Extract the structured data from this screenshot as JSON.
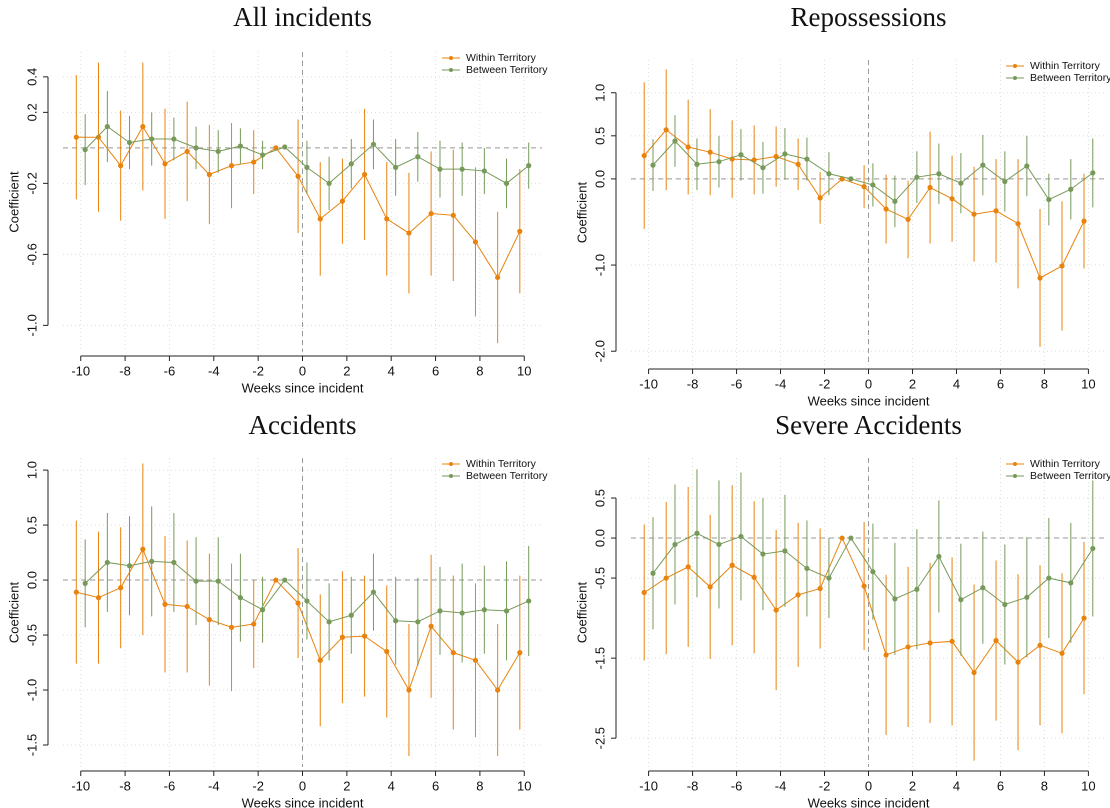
{
  "chart_data": [
    {
      "type": "line",
      "title": "All incidents",
      "x_label": "Weeks since incident",
      "y_label": "Coefficient",
      "x": [
        -10,
        -9,
        -8,
        -7,
        -6,
        -5,
        -4,
        -3,
        -2,
        -1,
        0,
        1,
        2,
        3,
        4,
        5,
        6,
        7,
        8,
        9,
        10
      ],
      "xlim": [
        -10.8,
        10.8
      ],
      "ylim": [
        -1.15,
        0.54
      ],
      "xticks": [
        -10,
        -8,
        -6,
        -4,
        -2,
        0,
        2,
        4,
        6,
        8,
        10
      ],
      "yticks": [
        0.4,
        0.2,
        -0.2,
        -0.6,
        {
          "value": -1,
          "label": "-1.0"
        }
      ],
      "hline": 0,
      "vline": 0,
      "grid": true,
      "legend": "top right",
      "series": [
        {
          "name": "Within Territory",
          "color": "#e8830e",
          "values": [
            0.06,
            0.06,
            -0.1,
            0.12,
            -0.09,
            -0.02,
            -0.15,
            -0.1,
            -0.08,
            0,
            -0.16,
            -0.4,
            -0.3,
            -0.15,
            -0.4,
            -0.48,
            -0.37,
            -0.38,
            -0.53,
            -0.73,
            -0.47
          ],
          "errors": [
            0.35,
            0.42,
            0.31,
            0.36,
            0.31,
            0.28,
            0.28,
            0.24,
            0.18,
            0,
            0.32,
            0.32,
            0.24,
            0.37,
            0.32,
            0.34,
            0.35,
            0.37,
            0.42,
            0.37,
            0.35
          ]
        },
        {
          "name": "Between Territory",
          "color": "#779a5a",
          "values": [
            -0.01,
            0.12,
            0.03,
            0.05,
            0.05,
            0,
            -0.02,
            0.01,
            -0.04,
            0.005,
            -0.11,
            -0.2,
            -0.09,
            0.02,
            -0.11,
            -0.05,
            -0.12,
            -0.12,
            -0.13,
            -0.2,
            -0.1
          ],
          "errors": [
            0.2,
            0.2,
            0.15,
            0.15,
            0.12,
            0.12,
            0.12,
            0.1,
            0.08,
            0,
            0.15,
            0.15,
            0.14,
            0.14,
            0.16,
            0.14,
            0.16,
            0.15,
            0.13,
            0.14,
            0.13
          ]
        }
      ]
    },
    {
      "type": "line",
      "title": "Repossessions",
      "x_label": "Weeks since incident",
      "y_label": "Coefficient",
      "x": [
        -10,
        -9,
        -8,
        -7,
        -6,
        -5,
        -4,
        -3,
        -2,
        -1,
        0,
        1,
        2,
        3,
        4,
        5,
        6,
        7,
        8,
        9,
        10
      ],
      "xlim": [
        -10.8,
        10.8
      ],
      "ylim": [
        -2.16,
        1.38
      ],
      "xticks": [
        -10,
        -8,
        -6,
        -4,
        -2,
        0,
        2,
        4,
        6,
        8,
        10
      ],
      "yticks": [
        {
          "value": 1,
          "label": "1.0"
        },
        0.5,
        {
          "value": 0,
          "label": "0.0"
        },
        {
          "value": -1,
          "label": "-1.0"
        },
        {
          "value": -2,
          "label": "-2.0"
        }
      ],
      "hline": 0,
      "vline": 0,
      "grid": true,
      "legend": "top right",
      "series": [
        {
          "name": "Within Territory",
          "color": "#e8830e",
          "values": [
            0.27,
            0.57,
            0.37,
            0.31,
            0.23,
            0.22,
            0.26,
            0.17,
            -0.22,
            0,
            -0.09,
            -0.35,
            -0.47,
            -0.1,
            -0.23,
            -0.41,
            -0.37,
            -0.52,
            -1.15,
            -1.01,
            -0.49
          ],
          "errors": [
            0.85,
            0.7,
            0.55,
            0.5,
            0.45,
            0.4,
            0.35,
            0.3,
            0.3,
            0,
            0.25,
            0.4,
            0.45,
            0.65,
            0.5,
            0.55,
            0.6,
            0.75,
            0.8,
            0.75,
            0.55
          ]
        },
        {
          "name": "Between Territory",
          "color": "#779a5a",
          "values": [
            0.16,
            0.44,
            0.17,
            0.2,
            0.28,
            0.13,
            0.29,
            0.23,
            0.06,
            0,
            -0.07,
            -0.26,
            0.02,
            0.06,
            -0.05,
            0.16,
            -0.03,
            0.15,
            -0.24,
            -0.12,
            0.07
          ],
          "errors": [
            0.3,
            0.3,
            0.3,
            0.3,
            0.3,
            0.3,
            0.3,
            0.25,
            0.25,
            0,
            0.25,
            0.3,
            0.3,
            0.35,
            0.35,
            0.35,
            0.35,
            0.35,
            0.3,
            0.35,
            0.4
          ]
        }
      ]
    },
    {
      "type": "line",
      "title": "Accidents",
      "x_label": "Weeks since incident",
      "y_label": "Coefficient",
      "x": [
        -10,
        -9,
        -8,
        -7,
        -6,
        -5,
        -4,
        -3,
        -2,
        -1,
        0,
        1,
        2,
        3,
        4,
        5,
        6,
        7,
        8,
        9,
        10
      ],
      "xlim": [
        -10.8,
        10.8
      ],
      "ylim": [
        -1.7,
        1.11
      ],
      "xticks": [
        -10,
        -8,
        -6,
        -4,
        -2,
        0,
        2,
        4,
        6,
        8,
        10
      ],
      "yticks": [
        {
          "value": 1,
          "label": "1.0"
        },
        0.5,
        {
          "value": 0,
          "label": "0.0"
        },
        -0.5,
        {
          "value": -1,
          "label": "-1.0"
        },
        -1.5
      ],
      "hline": 0,
      "vline": 0,
      "grid": true,
      "legend": "top right",
      "series": [
        {
          "name": "Within Territory",
          "color": "#e8830e",
          "values": [
            -0.11,
            -0.16,
            -0.07,
            0.28,
            -0.22,
            -0.24,
            -0.36,
            -0.43,
            -0.4,
            0,
            -0.21,
            -0.73,
            -0.52,
            -0.51,
            -0.65,
            -1.0,
            -0.42,
            -0.66,
            -0.73,
            -1.0,
            -0.66
          ],
          "errors": [
            0.65,
            0.6,
            0.55,
            0.78,
            0.62,
            0.6,
            0.6,
            0.58,
            0.4,
            0,
            0.5,
            0.6,
            0.6,
            0.55,
            0.6,
            0.6,
            0.65,
            0.7,
            0.7,
            0.6,
            0.7
          ]
        },
        {
          "name": "Between Territory",
          "color": "#779a5a",
          "values": [
            -0.03,
            0.16,
            0.13,
            0.17,
            0.16,
            -0.01,
            -0.01,
            -0.16,
            -0.27,
            0,
            -0.19,
            -0.38,
            -0.32,
            -0.11,
            -0.37,
            -0.38,
            -0.28,
            -0.3,
            -0.27,
            -0.28,
            -0.19
          ],
          "errors": [
            0.4,
            0.45,
            0.45,
            0.5,
            0.45,
            0.4,
            0.4,
            0.4,
            0.3,
            0,
            0.35,
            0.35,
            0.35,
            0.35,
            0.4,
            0.4,
            0.4,
            0.45,
            0.4,
            0.45,
            0.5
          ]
        }
      ]
    },
    {
      "type": "line",
      "title": "Severe Accidents",
      "x_label": "Weeks since incident",
      "y_label": "Coefficient",
      "x": [
        -10,
        -9,
        -8,
        -7,
        -6,
        -5,
        -4,
        -3,
        -2,
        -1,
        0,
        1,
        2,
        3,
        4,
        5,
        6,
        7,
        8,
        9,
        10
      ],
      "xlim": [
        -10.8,
        10.8
      ],
      "ylim": [
        -2.86,
        1.0
      ],
      "xticks": [
        -10,
        -8,
        -6,
        -4,
        -2,
        0,
        2,
        4,
        6,
        8,
        10
      ],
      "yticks": [
        0.5,
        {
          "value": 0,
          "label": "0.0"
        },
        -0.5,
        -1.5,
        -2.5
      ],
      "hline": 0,
      "vline": 0,
      "grid": true,
      "legend": "top right",
      "series": [
        {
          "name": "Within Territory",
          "color": "#e8830e",
          "values": [
            -0.68,
            -0.5,
            -0.36,
            -0.61,
            -0.34,
            -0.49,
            -0.9,
            -0.71,
            -0.63,
            0,
            -0.6,
            -1.46,
            -1.36,
            -1.31,
            -1.29,
            -1.68,
            -1.28,
            -1.55,
            -1.34,
            -1.44,
            -1.0
          ],
          "errors": [
            0.85,
            0.95,
            1.0,
            0.9,
            1.0,
            0.95,
            1.0,
            0.9,
            0.75,
            0,
            0.8,
            1.0,
            1.0,
            1.0,
            1.05,
            1.1,
            1.0,
            1.1,
            1.0,
            1.0,
            0.95
          ]
        },
        {
          "name": "Between Territory",
          "color": "#779a5a",
          "values": [
            -0.44,
            -0.08,
            0.06,
            -0.08,
            0.02,
            -0.2,
            -0.16,
            -0.38,
            -0.5,
            0,
            -0.42,
            -0.76,
            -0.64,
            -0.23,
            -0.77,
            -0.62,
            -0.83,
            -0.74,
            -0.5,
            -0.56,
            -0.13
          ],
          "errors": [
            0.7,
            0.75,
            0.8,
            0.8,
            0.8,
            0.7,
            0.7,
            0.6,
            0.5,
            0,
            0.6,
            0.7,
            0.75,
            0.7,
            0.7,
            0.7,
            0.75,
            0.75,
            0.75,
            0.75,
            0.85
          ]
        }
      ]
    }
  ]
}
